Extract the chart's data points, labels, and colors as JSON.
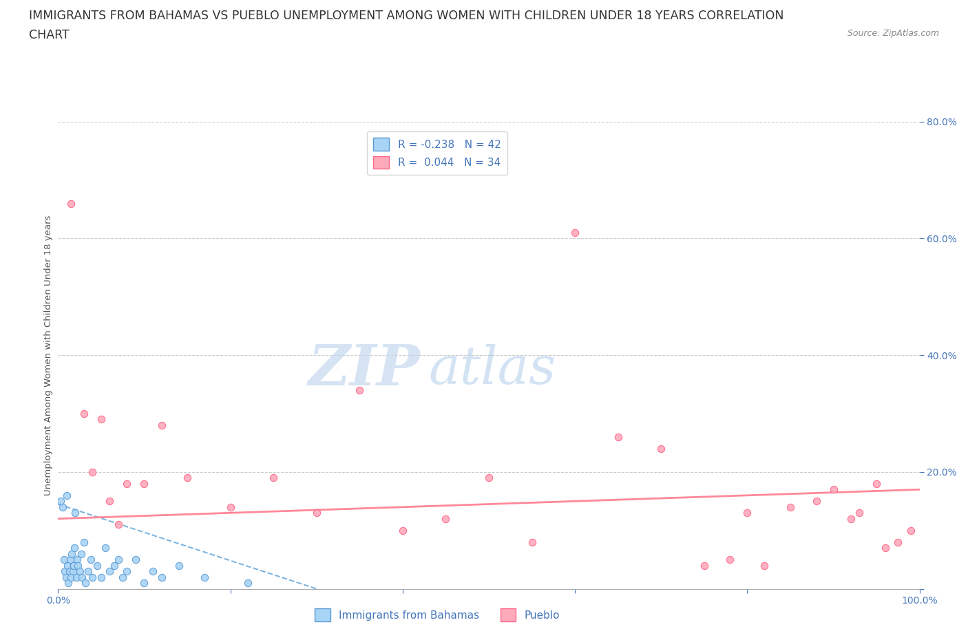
{
  "title_line1": "IMMIGRANTS FROM BAHAMAS VS PUEBLO UNEMPLOYMENT AMONG WOMEN WITH CHILDREN UNDER 18 YEARS CORRELATION",
  "title_line2": "CHART",
  "source_text": "Source: ZipAtlas.com",
  "watermark_zip": "ZIP",
  "watermark_atlas": "atlas",
  "xlabel": "",
  "ylabel": "Unemployment Among Women with Children Under 18 years",
  "xlim": [
    0,
    100
  ],
  "ylim": [
    0,
    80
  ],
  "yticks": [
    0,
    20,
    40,
    60,
    80
  ],
  "yticklabels": [
    "",
    "20.0%",
    "40.0%",
    "60.0%",
    "80.0%"
  ],
  "xtick_left": "0.0%",
  "xtick_right": "100.0%",
  "legend_r1": "R = -0.238",
  "legend_n1": "N = 42",
  "legend_r2": "R =  0.044",
  "legend_n2": "N = 34",
  "color_blue_fill": "#A8D4F5",
  "color_blue_edge": "#5B9BD5",
  "color_pink_fill": "#FFAABB",
  "color_pink_edge": "#FF6688",
  "color_trend_blue": "#7EB5E0",
  "color_trend_pink": "#FF8899",
  "color_text_blue": "#4477BB",
  "color_axis": "#aaaaaa",
  "blue_x": [
    0.3,
    0.5,
    0.7,
    0.8,
    0.9,
    1.0,
    1.1,
    1.2,
    1.3,
    1.4,
    1.5,
    1.6,
    1.7,
    1.8,
    1.9,
    2.0,
    2.1,
    2.2,
    2.3,
    2.5,
    2.7,
    2.8,
    3.0,
    3.2,
    3.5,
    3.8,
    4.0,
    4.5,
    5.0,
    5.5,
    6.0,
    6.5,
    7.0,
    7.5,
    8.0,
    9.0,
    10.0,
    11.0,
    12.0,
    14.0,
    17.0,
    22.0
  ],
  "blue_y": [
    15,
    14,
    5,
    3,
    2,
    16,
    4,
    1,
    3,
    5,
    2,
    6,
    3,
    4,
    7,
    13,
    2,
    5,
    4,
    3,
    6,
    2,
    8,
    1,
    3,
    5,
    2,
    4,
    2,
    7,
    3,
    4,
    5,
    2,
    3,
    5,
    1,
    3,
    2,
    4,
    2,
    1
  ],
  "pink_x": [
    1.5,
    3.0,
    4.0,
    5.0,
    6.0,
    7.0,
    8.0,
    10.0,
    12.0,
    15.0,
    20.0,
    25.0,
    30.0,
    35.0,
    40.0,
    45.0,
    50.0,
    55.0,
    60.0,
    65.0,
    70.0,
    75.0,
    78.0,
    80.0,
    82.0,
    85.0,
    88.0,
    90.0,
    92.0,
    93.0,
    95.0,
    96.0,
    97.5,
    99.0
  ],
  "pink_y": [
    66,
    30,
    20,
    29,
    15,
    11,
    18,
    18,
    28,
    19,
    14,
    19,
    13,
    34,
    10,
    12,
    19,
    8,
    61,
    26,
    24,
    4,
    5,
    13,
    4,
    14,
    15,
    17,
    12,
    13,
    18,
    7,
    8,
    10
  ],
  "blue_trend_x": [
    0,
    30
  ],
  "blue_trend_y": [
    14.5,
    0
  ],
  "pink_trend_x": [
    0,
    100
  ],
  "pink_trend_y": [
    12,
    17
  ],
  "background_color": "#ffffff",
  "grid_color": "#cccccc",
  "title_fontsize": 12.5,
  "axis_label_fontsize": 9.5,
  "tick_fontsize": 10,
  "legend_fontsize": 11,
  "watermark_fontsize_zip": 60,
  "watermark_fontsize_atlas": 55
}
